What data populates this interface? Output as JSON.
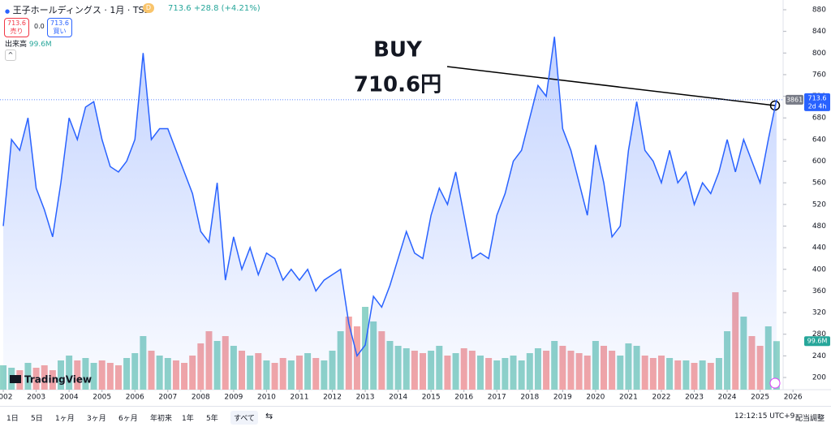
{
  "header": {
    "symbol": "王子ホールディングス · 1月 · TSE",
    "price": "713.6",
    "change": "+28.8 (+4.21%)",
    "interval_badge": "D",
    "sell_price": "713.6",
    "sell_label": "売り",
    "spread": "0.0",
    "buy_price": "713.6",
    "buy_label": "買い",
    "volume_value": "99.6M"
  },
  "annotation": {
    "title": "BUY",
    "price": "710.6円"
  },
  "price_tag": {
    "code": "3861",
    "countdown": "2d 4h"
  },
  "logo": "TradingView",
  "toolbar": {
    "ranges": [
      "1日",
      "5日",
      "1ヶ月",
      "3ヶ月",
      "6ヶ月",
      "年初来",
      "1年",
      "5年",
      "すべて"
    ],
    "time": "12:12:15 UTC+9",
    "adjust": "配当調整"
  },
  "chart_data": {
    "type": "line",
    "x": [
      2002,
      2002.25,
      2002.5,
      2002.75,
      2003,
      2003.25,
      2003.5,
      2003.75,
      2004,
      2004.25,
      2004.5,
      2004.75,
      2005,
      2005.25,
      2005.5,
      2005.75,
      2006,
      2006.25,
      2006.5,
      2006.75,
      2007,
      2007.25,
      2007.5,
      2007.75,
      2008,
      2008.25,
      2008.5,
      2008.75,
      2009,
      2009.25,
      2009.5,
      2009.75,
      2010,
      2010.25,
      2010.5,
      2010.75,
      2011,
      2011.25,
      2011.5,
      2011.75,
      2012,
      2012.25,
      2012.5,
      2012.75,
      2013,
      2013.25,
      2013.5,
      2013.75,
      2014,
      2014.25,
      2014.5,
      2014.75,
      2015,
      2015.25,
      2015.5,
      2015.75,
      2016,
      2016.25,
      2016.5,
      2016.75,
      2017,
      2017.25,
      2017.5,
      2017.75,
      2018,
      2018.25,
      2018.5,
      2018.75,
      2019,
      2019.25,
      2019.5,
      2019.75,
      2020,
      2020.25,
      2020.5,
      2020.75,
      2021,
      2021.25,
      2021.5,
      2021.75,
      2022,
      2022.25,
      2022.5,
      2022.75,
      2023,
      2023.25,
      2023.5,
      2023.75,
      2024,
      2024.25,
      2024.5,
      2024.75,
      2025,
      2025.25,
      2025.5
    ],
    "series": [
      {
        "color": "#2962ff",
        "values": [
          480,
          640,
          620,
          680,
          550,
          510,
          460,
          560,
          680,
          640,
          700,
          710,
          640,
          590,
          580,
          600,
          640,
          800,
          640,
          660,
          660,
          620,
          580,
          540,
          470,
          450,
          560,
          380,
          460,
          400,
          440,
          390,
          430,
          420,
          380,
          400,
          380,
          400,
          360,
          380,
          390,
          400,
          300,
          240,
          260,
          350,
          330,
          370,
          420,
          470,
          430,
          420,
          500,
          550,
          520,
          580,
          500,
          420,
          430,
          420,
          500,
          540,
          600,
          620,
          680,
          740,
          720,
          830,
          660,
          620,
          560,
          500,
          630,
          560,
          460,
          480,
          620,
          710,
          620,
          600,
          560,
          620,
          560,
          580,
          520,
          560,
          540,
          580,
          640,
          580,
          640,
          600,
          560,
          640,
          713.6
        ]
      },
      {
        "name": "出来高",
        "axis": "y2",
        "up_color": "#8fd3c8",
        "down_color": "#f4a6a6",
        "values": [
          50,
          45,
          40,
          55,
          45,
          50,
          40,
          60,
          70,
          60,
          65,
          55,
          60,
          55,
          50,
          65,
          75,
          110,
          80,
          70,
          65,
          60,
          55,
          70,
          95,
          120,
          100,
          110,
          90,
          80,
          70,
          75,
          60,
          55,
          65,
          60,
          70,
          75,
          65,
          60,
          80,
          120,
          150,
          130,
          170,
          140,
          120,
          100,
          90,
          85,
          80,
          75,
          80,
          90,
          70,
          75,
          85,
          80,
          70,
          65,
          60,
          65,
          70,
          60,
          75,
          85,
          80,
          100,
          90,
          80,
          75,
          70,
          100,
          90,
          80,
          70,
          95,
          90,
          70,
          65,
          70,
          65,
          60,
          60,
          55,
          60,
          55,
          65,
          120,
          200,
          150,
          110,
          90,
          130,
          99.6
        ]
      }
    ],
    "xlim": [
      2001.9,
      2025.7
    ],
    "ylim": [
      170,
      898
    ],
    "xticks": [
      2002,
      2003,
      2004,
      2005,
      2006,
      2007,
      2008,
      2009,
      2010,
      2011,
      2012,
      2013,
      2014,
      2015,
      2016,
      2017,
      2018,
      2019,
      2020,
      2021,
      2022,
      2023,
      2024,
      2025,
      2026
    ],
    "yticks": [
      200,
      240,
      280,
      320,
      360,
      400,
      440,
      480,
      520,
      560,
      600,
      640,
      680,
      720,
      760,
      800,
      840,
      880
    ]
  }
}
